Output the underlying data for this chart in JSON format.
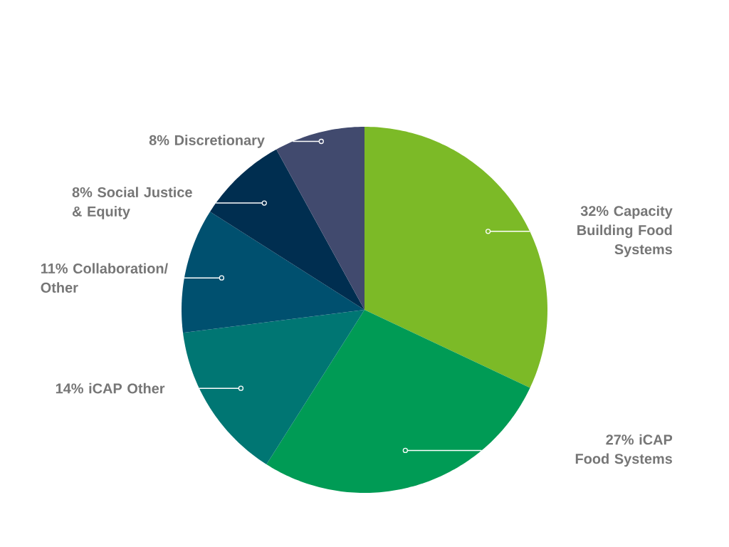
{
  "chart_data": {
    "type": "pie",
    "categories": [
      "Capacity Building Food Systems",
      "iCAP Food Systems",
      "iCAP Other",
      "Collaboration/ Other",
      "Social Justice & Equity",
      "Discretionary"
    ],
    "values": [
      32,
      27,
      14,
      11,
      8,
      8
    ],
    "value_labels": [
      "32%",
      "27%",
      "14%",
      "11%",
      "8%",
      "8%"
    ],
    "colors": [
      "#7cba27",
      "#009b55",
      "#007673",
      "#00506f",
      "#002e50",
      "#414a6e"
    ]
  }
}
